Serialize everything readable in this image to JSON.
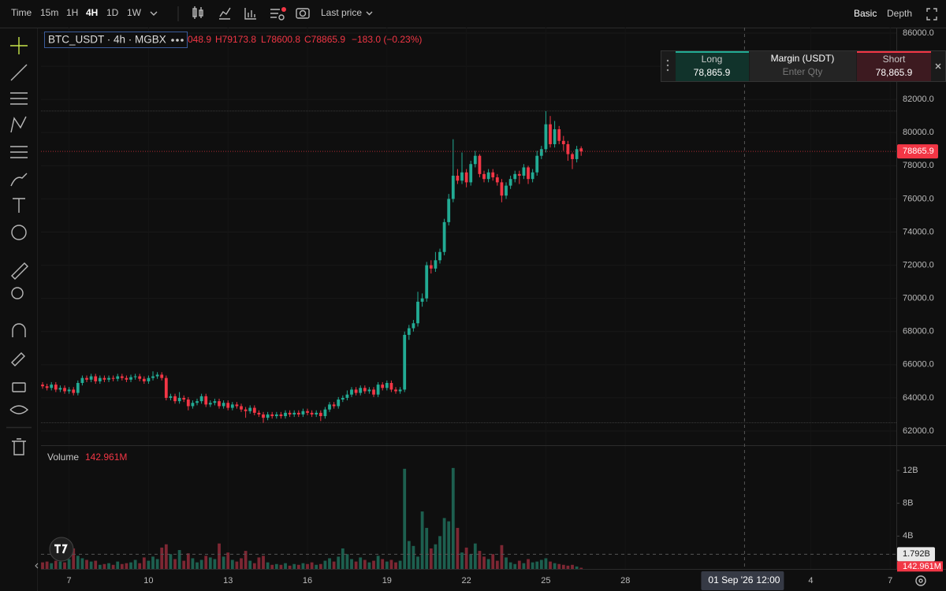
{
  "toolbar": {
    "time": "Time",
    "intervals": [
      "15m",
      "1H",
      "4H",
      "1D",
      "1W"
    ],
    "price_source": "Last price",
    "views": [
      "Basic",
      "Depth"
    ]
  },
  "legend": {
    "symbol": "BTC_USDT · 4h · MGBX",
    "open": "048.9",
    "high": "H79173.8",
    "low": "L78600.8",
    "close": "C78865.9",
    "change": "−183.0 (−0.23%)"
  },
  "volume_legend": {
    "name": "Volume",
    "value": "142.961M"
  },
  "trade_panel": {
    "long": "Long",
    "long_price": "78,865.9",
    "margin": "Margin (USDT)",
    "qty_placeholder": "Enter Qty",
    "short": "Short",
    "short_price": "78,865.9"
  },
  "chart_data": {
    "type": "candlestick",
    "up_color": "#22ab94",
    "down_color": "#f23645",
    "volume_up_color": "#1d5f4f",
    "volume_down_color": "#7d2733",
    "grid": true,
    "candles": [
      [
        64800,
        64950,
        64550,
        64700
      ],
      [
        64700,
        64850,
        64450,
        64600
      ],
      [
        64600,
        64950,
        64450,
        64800
      ],
      [
        64800,
        64950,
        64350,
        64500
      ],
      [
        64500,
        64750,
        64350,
        64600
      ],
      [
        64600,
        64750,
        64250,
        64400
      ],
      [
        64400,
        64650,
        64250,
        64500
      ],
      [
        64500,
        64650,
        64150,
        64300
      ],
      [
        64300,
        65050,
        64150,
        64900
      ],
      [
        64900,
        65350,
        64750,
        65200
      ],
      [
        65200,
        65350,
        64950,
        65100
      ],
      [
        65100,
        65450,
        64950,
        65300
      ],
      [
        65300,
        65450,
        64850,
        65000
      ],
      [
        65000,
        65350,
        64850,
        65200
      ],
      [
        65200,
        65350,
        64950,
        65100
      ],
      [
        65100,
        65350,
        64950,
        65200
      ],
      [
        65200,
        65350,
        65000,
        65150
      ],
      [
        65150,
        65450,
        65000,
        65300
      ],
      [
        65300,
        65450,
        65050,
        65200
      ],
      [
        65200,
        65350,
        64950,
        65100
      ],
      [
        65100,
        65400,
        64950,
        65250
      ],
      [
        65250,
        65450,
        65100,
        65300
      ],
      [
        65300,
        65450,
        65000,
        65150
      ],
      [
        65150,
        65300,
        64850,
        65000
      ],
      [
        65000,
        65350,
        64850,
        65200
      ],
      [
        65200,
        65600,
        65050,
        65300
      ],
      [
        65300,
        65550,
        65150,
        65400
      ],
      [
        65400,
        65550,
        65050,
        65200
      ],
      [
        65200,
        65350,
        63850,
        64000
      ],
      [
        64000,
        64250,
        63850,
        64100
      ],
      [
        64100,
        64250,
        63650,
        63800
      ],
      [
        63800,
        64350,
        63650,
        64000
      ],
      [
        64000,
        64150,
        63750,
        63900
      ],
      [
        63900,
        64050,
        63250,
        63500
      ],
      [
        63500,
        63850,
        63350,
        63700
      ],
      [
        63700,
        63950,
        63550,
        63800
      ],
      [
        63800,
        64250,
        63650,
        64100
      ],
      [
        64100,
        64250,
        63450,
        63600
      ],
      [
        63600,
        63850,
        63450,
        63700
      ],
      [
        63700,
        63950,
        63550,
        63800
      ],
      [
        63800,
        63950,
        63350,
        63500
      ],
      [
        63500,
        63850,
        63350,
        63700
      ],
      [
        63700,
        63850,
        63250,
        63400
      ],
      [
        63400,
        63750,
        63250,
        63600
      ],
      [
        63600,
        63750,
        63350,
        63500
      ],
      [
        63500,
        63650,
        63150,
        63300
      ],
      [
        63300,
        63450,
        62800,
        63200
      ],
      [
        63200,
        63550,
        63050,
        63400
      ],
      [
        63400,
        63550,
        62950,
        63100
      ],
      [
        63100,
        63250,
        62850,
        63000
      ],
      [
        63000,
        63150,
        62500,
        62800
      ],
      [
        62800,
        63150,
        62650,
        63000
      ],
      [
        63000,
        63150,
        62750,
        62900
      ],
      [
        62900,
        63150,
        62750,
        63000
      ],
      [
        63000,
        63150,
        62750,
        62900
      ],
      [
        62900,
        63250,
        62750,
        63100
      ],
      [
        63100,
        63250,
        62850,
        63000
      ],
      [
        63000,
        63250,
        62850,
        63100
      ],
      [
        63100,
        63250,
        62850,
        63000
      ],
      [
        63000,
        63350,
        62850,
        63200
      ],
      [
        63200,
        63350,
        62950,
        63100
      ],
      [
        63100,
        63250,
        62850,
        63000
      ],
      [
        63000,
        63250,
        62850,
        63100
      ],
      [
        63100,
        63250,
        62600,
        62900
      ],
      [
        62900,
        63450,
        62750,
        63300
      ],
      [
        63300,
        63750,
        63150,
        63600
      ],
      [
        63600,
        63750,
        63350,
        63500
      ],
      [
        63500,
        64050,
        63350,
        63900
      ],
      [
        63900,
        64150,
        63750,
        64000
      ],
      [
        64000,
        64450,
        63850,
        64200
      ],
      [
        64200,
        64650,
        64050,
        64500
      ],
      [
        64500,
        64650,
        64150,
        64300
      ],
      [
        64300,
        64750,
        64150,
        64600
      ],
      [
        64600,
        64750,
        64250,
        64400
      ],
      [
        64400,
        64650,
        64250,
        64500
      ],
      [
        64500,
        64650,
        64050,
        64200
      ],
      [
        64200,
        64950,
        64050,
        64800
      ],
      [
        64800,
        64950,
        64450,
        64600
      ],
      [
        64600,
        65050,
        64450,
        64900
      ],
      [
        64900,
        65050,
        64350,
        64500
      ],
      [
        64500,
        64650,
        64250,
        64400
      ],
      [
        64400,
        64650,
        64250,
        64500
      ],
      [
        64500,
        68000,
        64350,
        67800
      ],
      [
        67800,
        68400,
        67500,
        68200
      ],
      [
        68200,
        68700,
        68000,
        68500
      ],
      [
        68500,
        70400,
        68300,
        69800
      ],
      [
        69800,
        70300,
        69500,
        70000
      ],
      [
        70000,
        72200,
        69800,
        72000
      ],
      [
        72000,
        72300,
        71500,
        71800
      ],
      [
        71800,
        72800,
        71600,
        72300
      ],
      [
        72300,
        73000,
        72100,
        72800
      ],
      [
        72800,
        74800,
        72600,
        74600
      ],
      [
        74600,
        76300,
        74400,
        76000
      ],
      [
        76000,
        79600,
        75800,
        77400
      ],
      [
        77400,
        77800,
        76900,
        77100
      ],
      [
        77100,
        78800,
        76900,
        77600
      ],
      [
        77600,
        77800,
        76700,
        77000
      ],
      [
        77000,
        78300,
        76800,
        78100
      ],
      [
        78100,
        78900,
        77900,
        78600
      ],
      [
        78600,
        78700,
        77300,
        77500
      ],
      [
        77500,
        77700,
        77000,
        77200
      ],
      [
        77200,
        77800,
        77000,
        77600
      ],
      [
        77600,
        77800,
        77100,
        77300
      ],
      [
        77300,
        77500,
        76800,
        77000
      ],
      [
        77000,
        77200,
        75800,
        76200
      ],
      [
        76200,
        77000,
        76000,
        76800
      ],
      [
        76800,
        77400,
        76600,
        77200
      ],
      [
        77200,
        77700,
        77000,
        77500
      ],
      [
        77500,
        77700,
        76900,
        77400
      ],
      [
        77400,
        78100,
        77200,
        77900
      ],
      [
        77900,
        78000,
        76900,
        77200
      ],
      [
        77200,
        77800,
        77000,
        77600
      ],
      [
        77600,
        78900,
        77400,
        78600
      ],
      [
        78600,
        79200,
        78400,
        79000
      ],
      [
        79000,
        81300,
        78800,
        80500
      ],
      [
        80500,
        81000,
        79100,
        79300
      ],
      [
        79300,
        80700,
        79100,
        80200
      ],
      [
        80200,
        80400,
        79300,
        79500
      ],
      [
        79500,
        79800,
        78900,
        79300
      ],
      [
        79300,
        79500,
        78300,
        78700
      ],
      [
        78700,
        78800,
        77800,
        78400
      ],
      [
        78400,
        79200,
        78200,
        79000
      ],
      [
        79048.9,
        79173.8,
        78600.8,
        78865.9
      ]
    ],
    "volume": [
      0.8,
      0.9,
      0.7,
      1.0,
      0.9,
      0.8,
      1.2,
      2.5,
      1.6,
      1.3,
      1.1,
      0.9,
      1.0,
      0.5,
      0.6,
      0.7,
      0.5,
      0.9,
      0.6,
      0.7,
      0.8,
      1.1,
      0.7,
      1.4,
      1.0,
      1.5,
      1.2,
      2.6,
      3.0,
      1.8,
      1.2,
      2.3,
      1.0,
      1.9,
      1.3,
      0.8,
      1.1,
      1.6,
      1.4,
      1.2,
      3.1,
      1.5,
      2.0,
      1.1,
      0.9,
      1.3,
      2.2,
      1.0,
      0.7,
      1.4,
      1.6,
      0.8,
      0.5,
      0.6,
      0.5,
      0.7,
      0.4,
      0.6,
      0.5,
      0.7,
      0.6,
      0.8,
      0.5,
      0.6,
      1.0,
      1.3,
      0.9,
      1.5,
      2.5,
      1.8,
      1.2,
      0.9,
      1.4,
      1.1,
      0.8,
      1.0,
      1.6,
      1.2,
      0.9,
      1.1,
      0.8,
      1.0,
      12.2,
      3.4,
      2.8,
      1.5,
      7.0,
      5.0,
      2.5,
      3.0,
      4.0,
      6.2,
      5.8,
      12.3,
      5.0,
      2.0,
      2.6,
      1.8,
      3.1,
      2.2,
      1.5,
      1.2,
      1.8,
      1.0,
      2.9,
      1.4,
      0.8,
      0.6,
      1.0,
      0.7,
      1.2,
      0.8,
      0.9,
      1.1,
      1.3,
      0.9,
      0.7,
      0.6,
      0.5,
      0.4,
      0.5,
      0.3,
      0.142961
    ],
    "xlim": [
      -0.36,
      193.39
    ],
    "xticks": [
      {
        "value": 6,
        "label": "7"
      },
      {
        "value": 24,
        "label": "10"
      },
      {
        "value": 42,
        "label": "13"
      },
      {
        "value": 60,
        "label": "16"
      },
      {
        "value": 78,
        "label": "19"
      },
      {
        "value": 96,
        "label": "22"
      },
      {
        "value": 114,
        "label": "25"
      },
      {
        "value": 132,
        "label": "28"
      },
      {
        "value": 174,
        "label": "4"
      },
      {
        "value": 192,
        "label": "7"
      }
    ],
    "ylim": [
      61145,
      86333
    ],
    "yticks": [
      {
        "value": 86000,
        "label": "86000.0"
      },
      {
        "value": 84000,
        "label": "84000.0"
      },
      {
        "value": 82000,
        "label": "82000.0"
      },
      {
        "value": 80000,
        "label": "80000.0"
      },
      {
        "value": 78000,
        "label": "78000.0"
      },
      {
        "value": 76000,
        "label": "76000.0"
      },
      {
        "value": 74000,
        "label": "74000.0"
      },
      {
        "value": 72000,
        "label": "72000.0"
      },
      {
        "value": 70000,
        "label": "70000.0"
      },
      {
        "value": 68000,
        "label": "68000.0"
      },
      {
        "value": 66000,
        "label": "66000.0"
      },
      {
        "value": 64000,
        "label": "64000.0"
      },
      {
        "value": 62000,
        "label": "62000.0"
      }
    ],
    "vlim": [
      0,
      15.07
    ],
    "vticks": [
      {
        "value": 12,
        "label": "12B"
      },
      {
        "value": 8,
        "label": "8B"
      },
      {
        "value": 4,
        "label": "4B"
      }
    ],
    "current_price": 78865.9,
    "range_high": 81300,
    "range_low": 62500,
    "crosshair": {
      "x": 159,
      "date_label": "01 Sep '26",
      "time_label": "12:00",
      "y": {
        "value": 1.792,
        "label": "1.792B"
      }
    }
  }
}
